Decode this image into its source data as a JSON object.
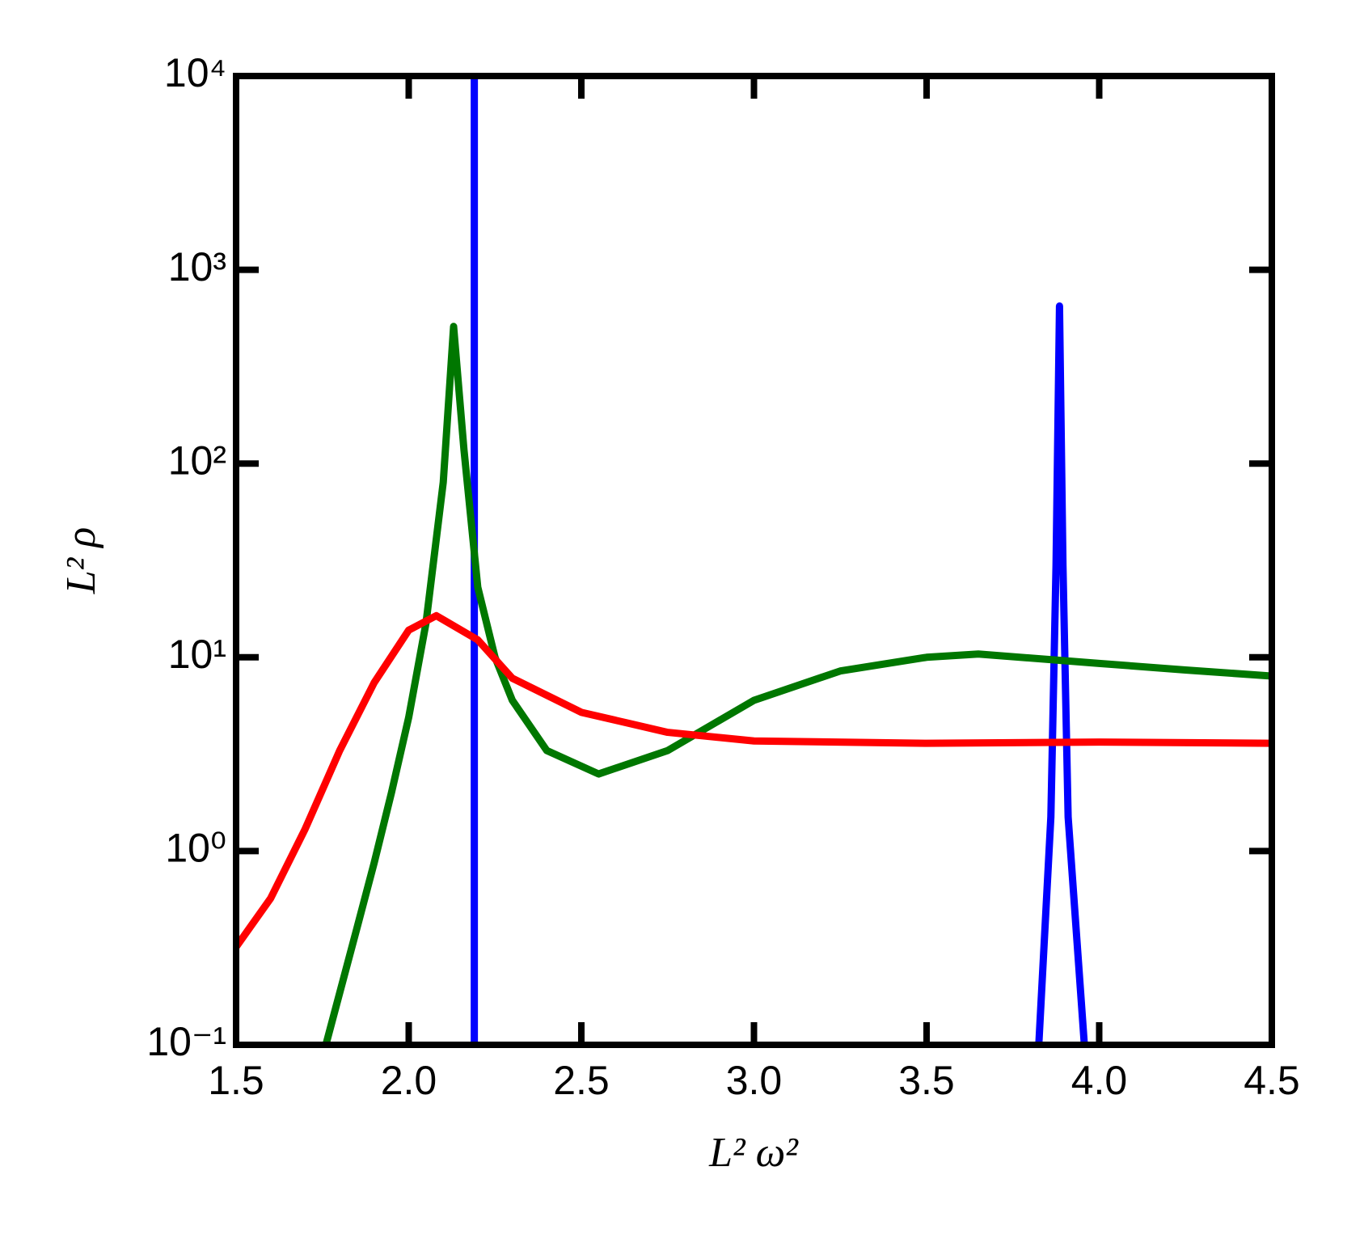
{
  "chart_data": {
    "type": "line",
    "xlabel": "L² ω²",
    "ylabel": "L² ρ",
    "xlim": [
      1.5,
      4.5
    ],
    "xticks": [
      1.5,
      {
        "value": 2,
        "label": "2.0"
      },
      2.5,
      {
        "value": 3,
        "label": "3.0"
      },
      3.5,
      {
        "value": 4,
        "label": "4.0"
      },
      4.5
    ],
    "ylim": [
      0.1,
      10000
    ],
    "yscale": "log",
    "yticks": [
      {
        "value": 0.1,
        "label": "10⁻¹"
      },
      {
        "value": 1,
        "label": "10⁰"
      },
      {
        "value": 10,
        "label": "10¹"
      },
      {
        "value": 100,
        "label": "10²"
      },
      {
        "value": 1000,
        "label": "10³"
      },
      {
        "value": 10000,
        "label": "10⁴"
      }
    ],
    "grid": false,
    "series": [
      {
        "color": "#0000ff",
        "x": [
          2.19,
          2.19,
          3.0,
          3.825,
          3.86,
          3.875,
          3.885,
          3.895,
          3.91,
          3.957
        ],
        "values": [
          0.1,
          10000,
          null,
          0.1,
          1.5,
          30,
          650,
          30,
          1.5,
          0.1
        ]
      },
      {
        "color": "#007700",
        "x": [
          1.76,
          1.85,
          1.9,
          1.95,
          2.0,
          2.05,
          2.1,
          2.13,
          2.16,
          2.2,
          2.25,
          2.3,
          2.4,
          2.55,
          2.75,
          3.0,
          3.25,
          3.5,
          3.65,
          4.0,
          4.25,
          4.5
        ],
        "values": [
          0.1,
          0.4,
          0.87,
          2.0,
          4.9,
          15,
          80,
          510,
          118,
          23,
          10,
          6.0,
          3.3,
          2.5,
          3.3,
          6.0,
          8.5,
          10,
          10.4,
          9.3,
          8.6,
          8.0
        ]
      },
      {
        "color": "#ff0000",
        "x": [
          1.5,
          1.6,
          1.7,
          1.8,
          1.9,
          2.0,
          2.08,
          2.2,
          2.3,
          2.5,
          2.75,
          3.0,
          3.5,
          4.0,
          4.5
        ],
        "values": [
          0.32,
          0.57,
          1.3,
          3.3,
          7.4,
          13.8,
          16.4,
          12.3,
          7.8,
          5.2,
          4.1,
          3.7,
          3.6,
          3.65,
          3.6
        ]
      }
    ]
  }
}
